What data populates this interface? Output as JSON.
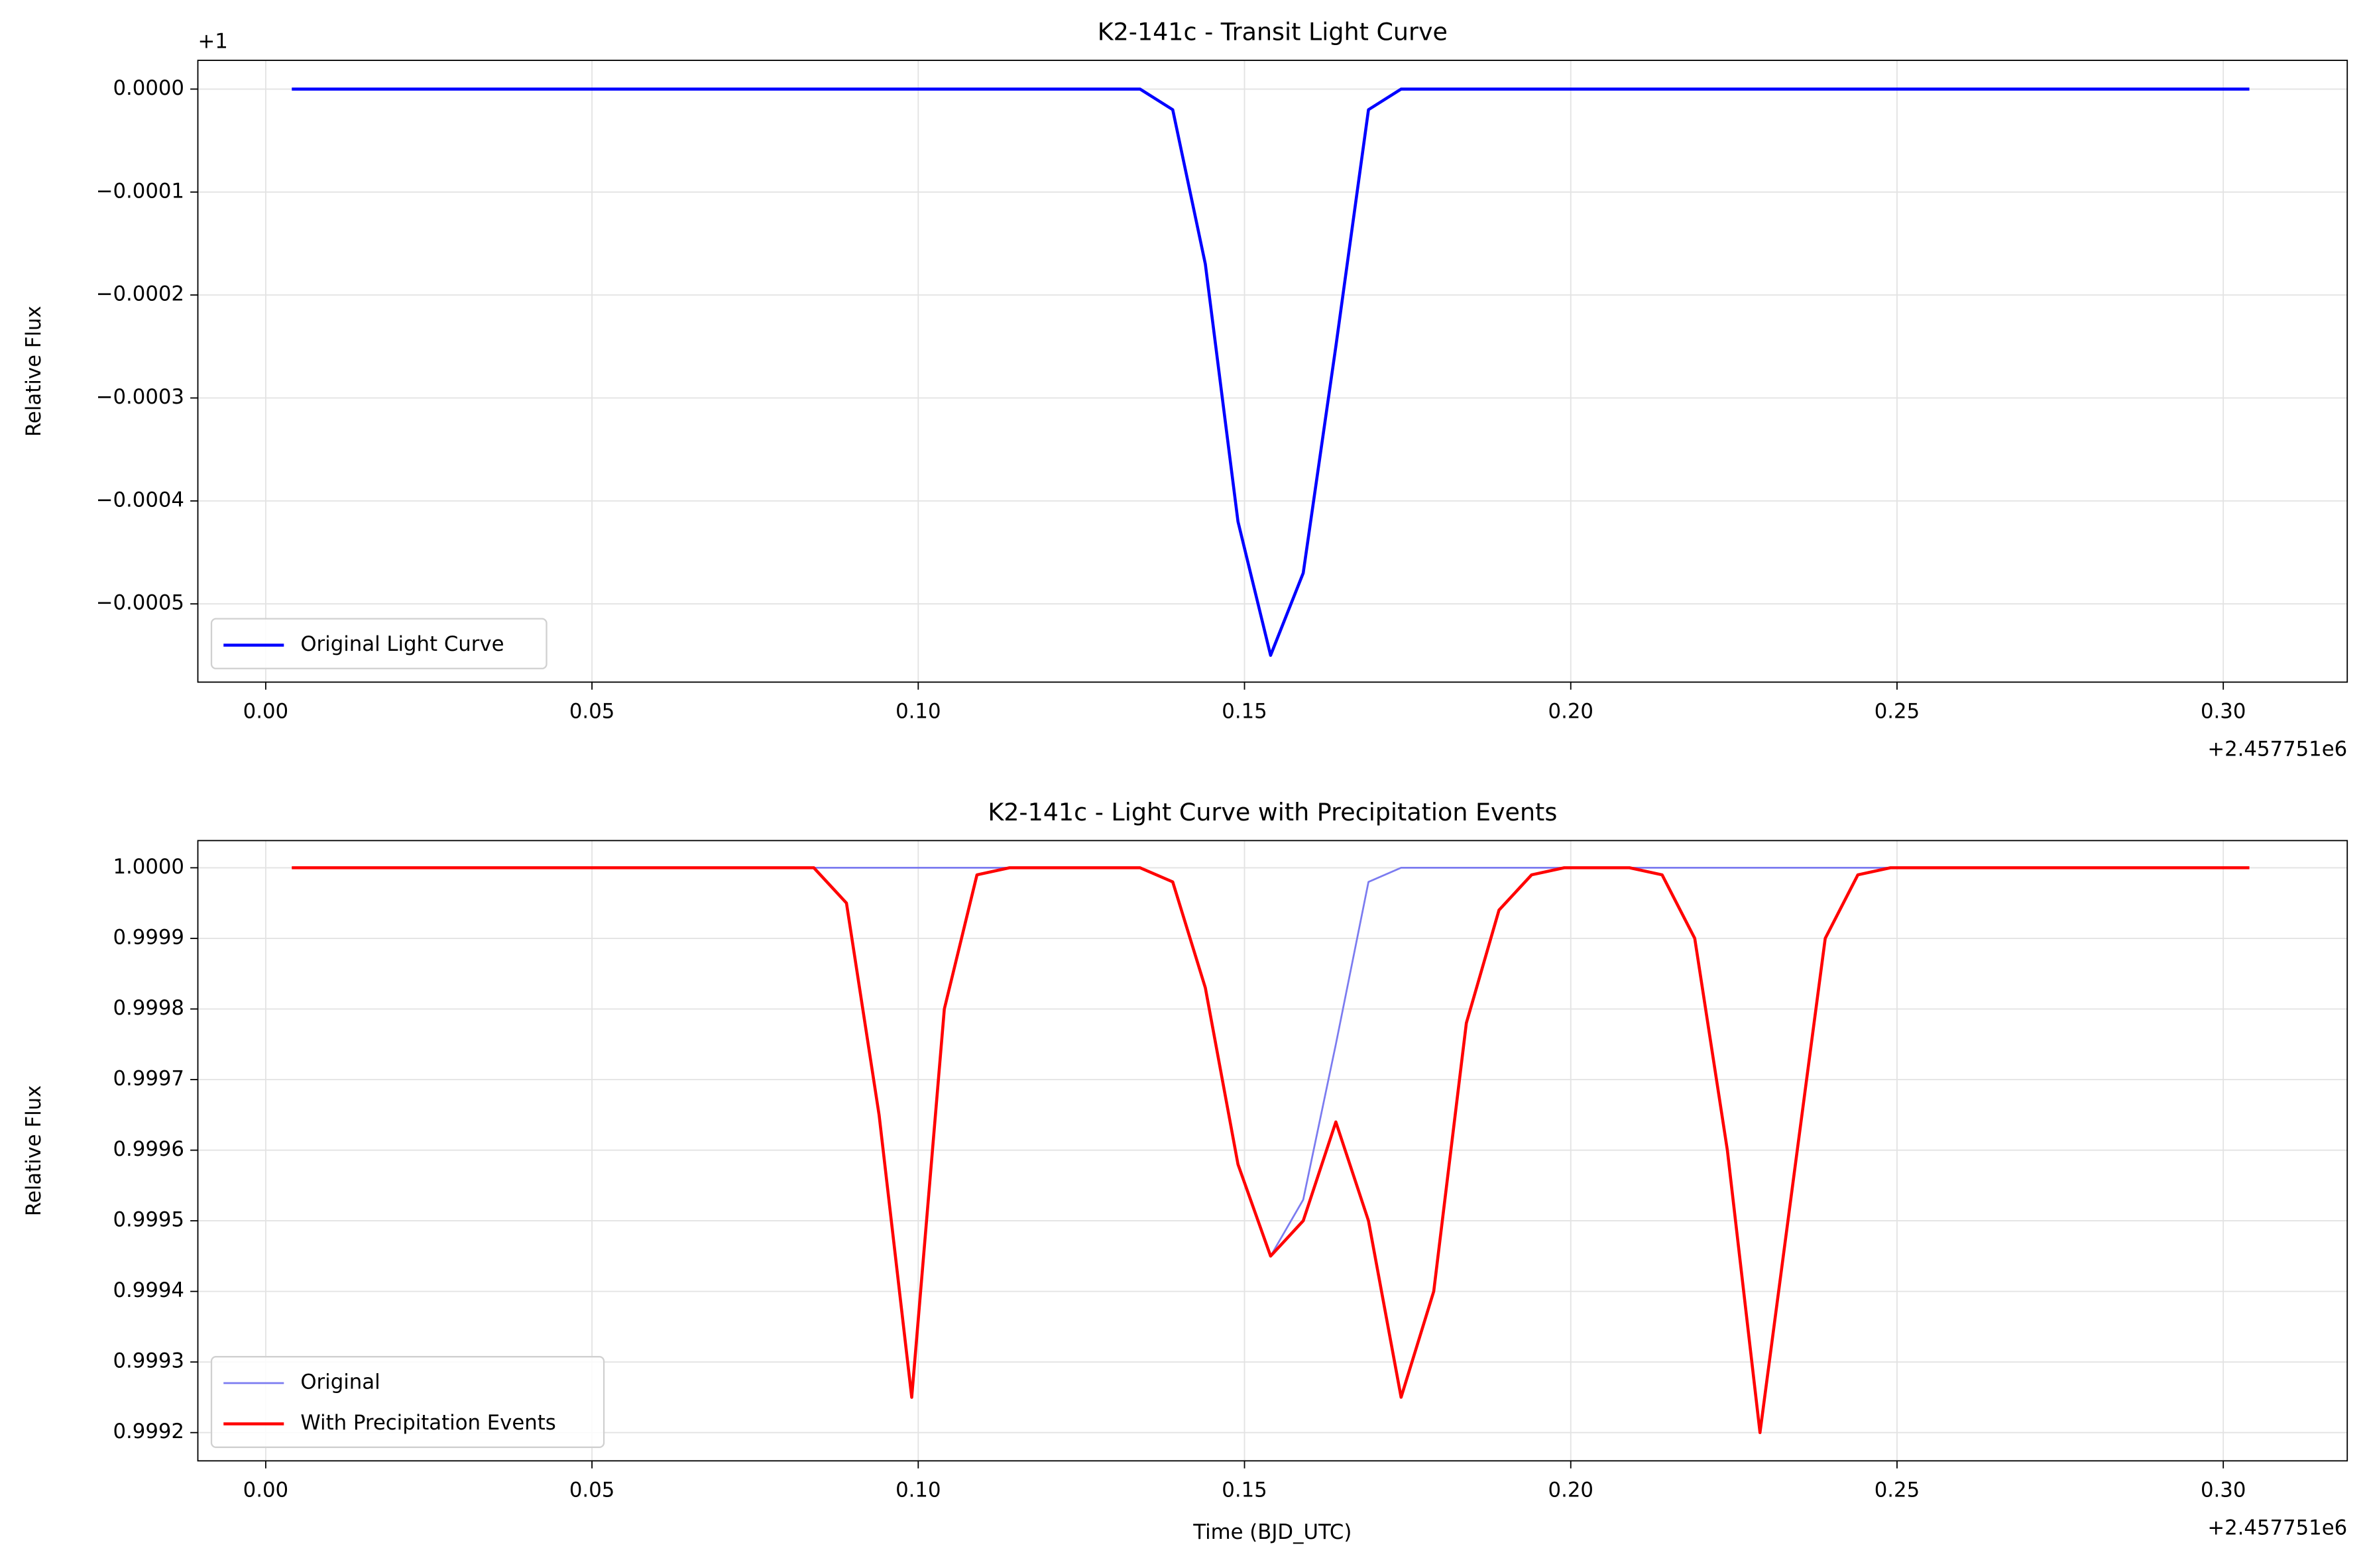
{
  "chart_data": [
    {
      "type": "line",
      "title": "K2-141c - Transit Light Curve",
      "ylabel": "Relative Flux",
      "x_offset_label": "+2.457751e6",
      "y_offset_label": "+1",
      "x": [
        0.004,
        0.009,
        0.014,
        0.019,
        0.024,
        0.029,
        0.034,
        0.039,
        0.044,
        0.049,
        0.054,
        0.059,
        0.064,
        0.069,
        0.074,
        0.079,
        0.084,
        0.089,
        0.094,
        0.099,
        0.104,
        0.109,
        0.114,
        0.119,
        0.124,
        0.129,
        0.134,
        0.139,
        0.144,
        0.149,
        0.154,
        0.159,
        0.164,
        0.169,
        0.174,
        0.179,
        0.184,
        0.189,
        0.194,
        0.199,
        0.204,
        0.209,
        0.214,
        0.219,
        0.224,
        0.229,
        0.234,
        0.239,
        0.244,
        0.249,
        0.254,
        0.259,
        0.264,
        0.269,
        0.274,
        0.279,
        0.284,
        0.289,
        0.294,
        0.299,
        0.304
      ],
      "series": [
        {
          "name": "Original Light Curve",
          "color": "#0000ff",
          "width": 2,
          "values": [
            0,
            0,
            0,
            0,
            0,
            0,
            0,
            0,
            0,
            0,
            0,
            0,
            0,
            0,
            0,
            0,
            0,
            0,
            0,
            0,
            0,
            0,
            0,
            0,
            0,
            0,
            0,
            -2e-05,
            -0.00017,
            -0.00042,
            -0.00055,
            -0.00047,
            -0.00025,
            -2e-05,
            0,
            0,
            0,
            0,
            0,
            0,
            0,
            0,
            0,
            0,
            0,
            0,
            0,
            0,
            0,
            0,
            0,
            0,
            0,
            0,
            0,
            0,
            0,
            0,
            0,
            0,
            0
          ]
        }
      ],
      "xlim": [
        -0.0104,
        0.319
      ],
      "ylim": [
        -0.000576,
        2.79e-05
      ],
      "xticks": [
        {
          "value": 0,
          "label": "0.00"
        },
        {
          "value": 0.05,
          "label": "0.05"
        },
        {
          "value": 0.1,
          "label": "0.10"
        },
        {
          "value": 0.15,
          "label": "0.15"
        },
        {
          "value": 0.2,
          "label": "0.20"
        },
        {
          "value": 0.25,
          "label": "0.25"
        },
        {
          "value": 0.3,
          "label": "0.30"
        }
      ],
      "yticks": [
        {
          "value": 0,
          "label": "0.0000"
        },
        {
          "value": -0.0001,
          "label": "−0.0001"
        },
        {
          "value": -0.0002,
          "label": "−0.0002"
        },
        {
          "value": -0.0003,
          "label": "−0.0003"
        },
        {
          "value": -0.0004,
          "label": "−0.0004"
        },
        {
          "value": -0.0005,
          "label": "−0.0005"
        }
      ],
      "grid": true,
      "legend": "lower left"
    },
    {
      "type": "line",
      "title": "K2-141c - Light Curve with Precipitation Events",
      "xlabel": "Time (BJD_UTC)",
      "ylabel": "Relative Flux",
      "x_offset_label": "+2.457751e6",
      "x": [
        0.004,
        0.009,
        0.014,
        0.019,
        0.024,
        0.029,
        0.034,
        0.039,
        0.044,
        0.049,
        0.054,
        0.059,
        0.064,
        0.069,
        0.074,
        0.079,
        0.084,
        0.089,
        0.094,
        0.099,
        0.104,
        0.109,
        0.114,
        0.119,
        0.124,
        0.129,
        0.134,
        0.139,
        0.144,
        0.149,
        0.154,
        0.159,
        0.164,
        0.169,
        0.174,
        0.179,
        0.184,
        0.189,
        0.194,
        0.199,
        0.204,
        0.209,
        0.214,
        0.219,
        0.224,
        0.229,
        0.234,
        0.239,
        0.244,
        0.249,
        0.254,
        0.259,
        0.264,
        0.269,
        0.274,
        0.279,
        0.284,
        0.289,
        0.294,
        0.299,
        0.304
      ],
      "series": [
        {
          "name": "Original",
          "color": "#7b7bf0",
          "width": 1.2,
          "values": [
            1,
            1,
            1,
            1,
            1,
            1,
            1,
            1,
            1,
            1,
            1,
            1,
            1,
            1,
            1,
            1,
            1,
            1,
            1,
            1,
            1,
            1,
            1,
            1,
            1,
            1,
            1,
            0.99998,
            0.99983,
            0.99958,
            0.99945,
            0.99953,
            0.99975,
            0.99998,
            1,
            1,
            1,
            1,
            1,
            1,
            1,
            1,
            1,
            1,
            1,
            1,
            1,
            1,
            1,
            1,
            1,
            1,
            1,
            1,
            1,
            1,
            1,
            1,
            1,
            1,
            1
          ]
        },
        {
          "name": "With Precipitation Events",
          "color": "#ff0000",
          "width": 2,
          "values": [
            1,
            1,
            1,
            1,
            1,
            1,
            1,
            1,
            1,
            1,
            1,
            1,
            1,
            1,
            1,
            1,
            1,
            0.99995,
            0.99965,
            0.99925,
            0.9998,
            0.99999,
            1,
            1,
            1,
            1,
            1,
            0.99998,
            0.99983,
            0.99958,
            0.99945,
            0.9995,
            0.99964,
            0.9995,
            0.99925,
            0.9994,
            0.99978,
            0.99994,
            0.99999,
            1,
            1,
            1,
            0.99999,
            0.9999,
            0.9996,
            0.9992,
            0.99955,
            0.9999,
            0.99999,
            1,
            1,
            1,
            1,
            1,
            1,
            1,
            1,
            1,
            1,
            1,
            1
          ]
        }
      ],
      "xlim": [
        -0.0104,
        0.319
      ],
      "ylim": [
        0.99916,
        1.0000385
      ],
      "xticks": [
        {
          "value": 0,
          "label": "0.00"
        },
        {
          "value": 0.05,
          "label": "0.05"
        },
        {
          "value": 0.1,
          "label": "0.10"
        },
        {
          "value": 0.15,
          "label": "0.15"
        },
        {
          "value": 0.2,
          "label": "0.20"
        },
        {
          "value": 0.25,
          "label": "0.25"
        },
        {
          "value": 0.3,
          "label": "0.30"
        }
      ],
      "yticks": [
        {
          "value": 1,
          "label": "1.0000"
        },
        {
          "value": 0.9999,
          "label": "0.9999"
        },
        {
          "value": 0.9998,
          "label": "0.9998"
        },
        {
          "value": 0.9997,
          "label": "0.9997"
        },
        {
          "value": 0.9996,
          "label": "0.9996"
        },
        {
          "value": 0.9995,
          "label": "0.9995"
        },
        {
          "value": 0.9994,
          "label": "0.9994"
        },
        {
          "value": 0.9993,
          "label": "0.9993"
        },
        {
          "value": 0.9992,
          "label": "0.9992"
        }
      ],
      "grid": true,
      "legend": "lower left"
    }
  ]
}
